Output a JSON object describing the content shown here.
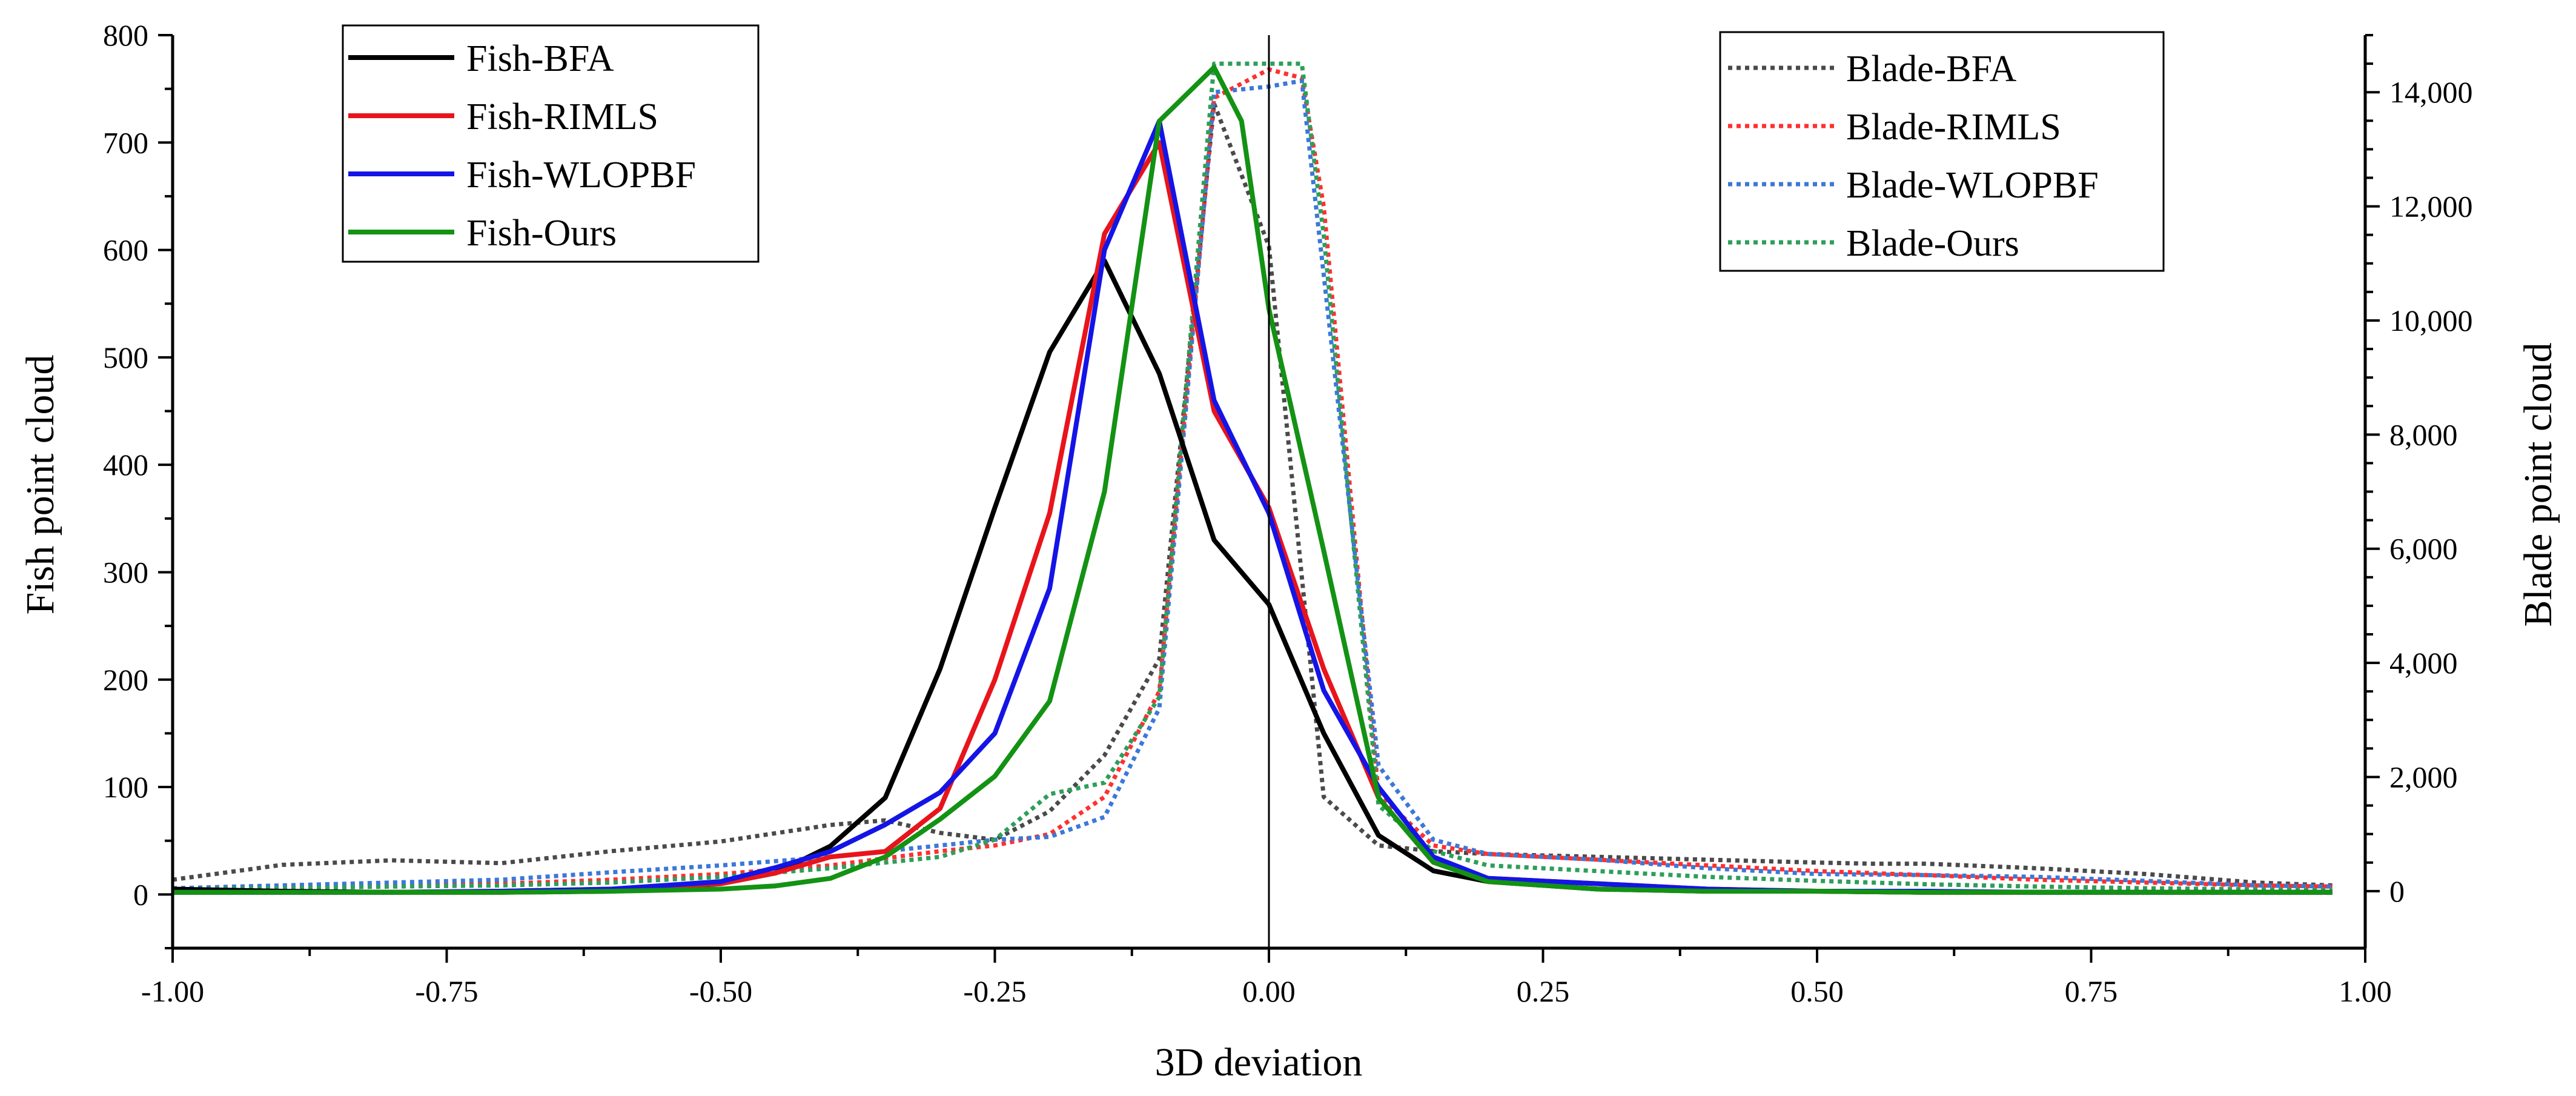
{
  "chart_data": {
    "type": "line",
    "title": "",
    "xlabel": "3D deviation",
    "ylabel_left": "Fish point cloud",
    "ylabel_right": "Blade point cloud",
    "xlim": [
      -1.0,
      1.0
    ],
    "ylim_left": [
      -50,
      800
    ],
    "ylim_right": [
      -1000,
      15000
    ],
    "x_ticks": [
      -1.0,
      -0.75,
      -0.5,
      -0.25,
      0.0,
      0.25,
      0.5,
      0.75,
      1.0
    ],
    "x_tick_labels": [
      "-1.00",
      "-0.75",
      "-0.50",
      "-0.25",
      "0.00",
      "0.25",
      "0.50",
      "0.75",
      "1.00"
    ],
    "y_left_ticks": [
      0,
      100,
      200,
      300,
      400,
      500,
      600,
      700,
      800
    ],
    "y_left_tick_labels": [
      "0",
      "100",
      "200",
      "300",
      "400",
      "500",
      "600",
      "700",
      "800"
    ],
    "y_right_ticks": [
      0,
      2000,
      4000,
      6000,
      8000,
      10000,
      12000,
      14000
    ],
    "y_right_tick_labels": [
      "0",
      "2,000",
      "4,000",
      "6,000",
      "8,000",
      "10,000",
      "12,000",
      "14,000"
    ],
    "vertical_reference_line_x": 0.0,
    "legend_left_position": "top-left",
    "legend_right_position": "top-right",
    "series": [
      {
        "name": "Fish-BFA",
        "axis": "left",
        "style": "solid",
        "color": "#000000",
        "x": [
          -1.0,
          -0.9,
          -0.8,
          -0.7,
          -0.6,
          -0.5,
          -0.45,
          -0.4,
          -0.35,
          -0.3,
          -0.25,
          -0.2,
          -0.15,
          -0.1,
          -0.05,
          0.0,
          0.05,
          0.1,
          0.15,
          0.2,
          0.3,
          0.4,
          0.5,
          0.6,
          0.7,
          0.8,
          0.9,
          0.97
        ],
        "y": [
          5,
          3,
          2,
          2,
          3,
          10,
          20,
          45,
          90,
          210,
          360,
          505,
          590,
          485,
          330,
          270,
          150,
          55,
          22,
          12,
          5,
          3,
          3,
          2,
          2,
          2,
          2,
          2
        ]
      },
      {
        "name": "Fish-RIMLS",
        "axis": "left",
        "style": "solid",
        "color": "#e8141c",
        "x": [
          -1.0,
          -0.9,
          -0.8,
          -0.7,
          -0.6,
          -0.5,
          -0.45,
          -0.4,
          -0.35,
          -0.3,
          -0.25,
          -0.2,
          -0.15,
          -0.1,
          -0.05,
          0.0,
          0.05,
          0.1,
          0.15,
          0.2,
          0.3,
          0.4,
          0.5,
          0.6,
          0.7,
          0.8,
          0.9,
          0.97
        ],
        "y": [
          2,
          2,
          2,
          3,
          5,
          10,
          20,
          35,
          40,
          80,
          200,
          355,
          615,
          700,
          450,
          360,
          210,
          90,
          30,
          15,
          10,
          5,
          3,
          2,
          2,
          2,
          2,
          2
        ]
      },
      {
        "name": "Fish-WLOPBF",
        "axis": "left",
        "style": "solid",
        "color": "#1414e6",
        "x": [
          -1.0,
          -0.9,
          -0.8,
          -0.7,
          -0.6,
          -0.5,
          -0.45,
          -0.4,
          -0.35,
          -0.3,
          -0.25,
          -0.2,
          -0.15,
          -0.1,
          -0.05,
          0.0,
          0.05,
          0.1,
          0.15,
          0.2,
          0.3,
          0.4,
          0.5,
          0.6,
          0.7,
          0.8,
          0.9,
          0.97
        ],
        "y": [
          2,
          2,
          2,
          3,
          5,
          12,
          25,
          40,
          65,
          95,
          150,
          285,
          600,
          720,
          460,
          355,
          190,
          100,
          35,
          15,
          10,
          5,
          3,
          3,
          2,
          2,
          2,
          2
        ]
      },
      {
        "name": "Fish-Ours",
        "axis": "left",
        "style": "solid",
        "color": "#139213",
        "x": [
          -1.0,
          -0.9,
          -0.8,
          -0.7,
          -0.6,
          -0.5,
          -0.45,
          -0.4,
          -0.35,
          -0.3,
          -0.25,
          -0.2,
          -0.15,
          -0.1,
          -0.05,
          -0.025,
          0.0,
          0.05,
          0.1,
          0.15,
          0.2,
          0.3,
          0.4,
          0.5,
          0.6,
          0.7,
          0.8,
          0.9,
          0.97
        ],
        "y": [
          2,
          2,
          2,
          2,
          3,
          5,
          8,
          15,
          35,
          70,
          110,
          180,
          375,
          720,
          770,
          720,
          545,
          320,
          90,
          30,
          12,
          5,
          3,
          3,
          2,
          2,
          2,
          2,
          2
        ]
      },
      {
        "name": "Blade-BFA",
        "axis": "right",
        "style": "dotted",
        "color": "#4a4a4a",
        "x": [
          -1.0,
          -0.9,
          -0.8,
          -0.7,
          -0.6,
          -0.5,
          -0.4,
          -0.35,
          -0.3,
          -0.25,
          -0.2,
          -0.15,
          -0.1,
          -0.05,
          0.0,
          0.05,
          0.1,
          0.15,
          0.2,
          0.3,
          0.4,
          0.5,
          0.55,
          0.6,
          0.7,
          0.8,
          0.9,
          0.97
        ],
        "y": [
          200,
          460,
          540,
          490,
          700,
          870,
          1160,
          1240,
          1020,
          900,
          1400,
          2380,
          4070,
          13800,
          11300,
          1650,
          800,
          700,
          650,
          600,
          550,
          500,
          480,
          480,
          400,
          300,
          150,
          100
        ]
      },
      {
        "name": "Blade-RIMLS",
        "axis": "right",
        "style": "dotted",
        "color": "#ff3030",
        "x": [
          -1.0,
          -0.9,
          -0.8,
          -0.7,
          -0.6,
          -0.5,
          -0.4,
          -0.3,
          -0.25,
          -0.2,
          -0.15,
          -0.1,
          -0.05,
          0.0,
          0.03,
          0.05,
          0.1,
          0.15,
          0.2,
          0.3,
          0.4,
          0.5,
          0.6,
          0.7,
          0.8,
          0.9,
          0.97
        ],
        "y": [
          50,
          80,
          100,
          130,
          200,
          300,
          450,
          700,
          800,
          1000,
          1650,
          3500,
          13900,
          14400,
          14250,
          12000,
          1700,
          800,
          650,
          550,
          450,
          350,
          280,
          200,
          150,
          100,
          80
        ]
      },
      {
        "name": "Blade-WLOPBF",
        "axis": "right",
        "style": "dotted",
        "color": "#3b78d8",
        "x": [
          -1.0,
          -0.9,
          -0.8,
          -0.7,
          -0.6,
          -0.5,
          -0.4,
          -0.3,
          -0.25,
          -0.2,
          -0.15,
          -0.1,
          -0.05,
          0.0,
          0.03,
          0.05,
          0.1,
          0.15,
          0.2,
          0.3,
          0.4,
          0.5,
          0.6,
          0.7,
          0.8,
          0.9,
          0.97
        ],
        "y": [
          50,
          100,
          150,
          200,
          330,
          450,
          600,
          800,
          900,
          950,
          1300,
          3200,
          14000,
          14100,
          14200,
          10800,
          2200,
          900,
          650,
          550,
          400,
          300,
          280,
          250,
          180,
          100,
          80
        ]
      },
      {
        "name": "Blade-Ours",
        "axis": "right",
        "style": "dotted",
        "color": "#2e9e5a",
        "x": [
          -1.0,
          -0.9,
          -0.8,
          -0.7,
          -0.6,
          -0.5,
          -0.4,
          -0.3,
          -0.25,
          -0.2,
          -0.15,
          -0.1,
          -0.05,
          0.0,
          0.03,
          0.05,
          0.1,
          0.15,
          0.2,
          0.3,
          0.4,
          0.5,
          0.6,
          0.7,
          0.8,
          0.9,
          0.97
        ],
        "y": [
          30,
          50,
          80,
          100,
          150,
          250,
          400,
          600,
          900,
          1700,
          1900,
          3400,
          14500,
          14500,
          14500,
          11500,
          1500,
          700,
          450,
          350,
          250,
          180,
          120,
          80,
          50,
          30,
          20
        ]
      }
    ]
  }
}
